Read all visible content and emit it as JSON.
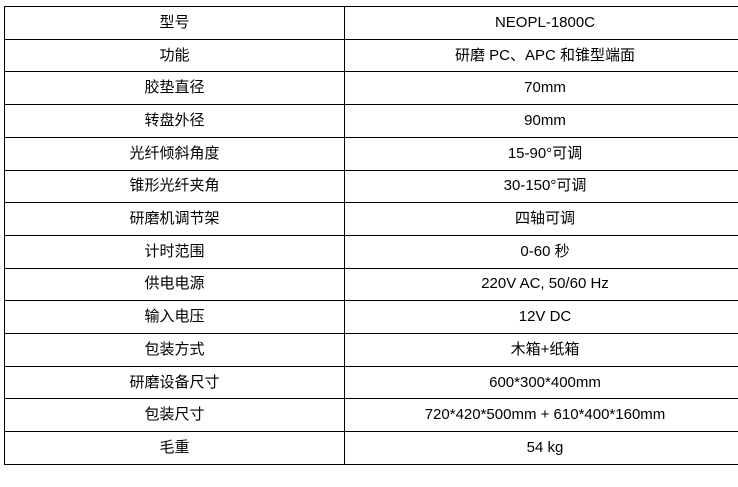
{
  "colors": {
    "border": "#000000",
    "text": "#000000",
    "background": "#ffffff"
  },
  "table": {
    "rows": [
      {
        "label": "型号",
        "value": "NEOPL-1800C"
      },
      {
        "label": "功能",
        "value": "研磨 PC、APC 和锥型端面"
      },
      {
        "label": "胶垫直径",
        "value": "70mm"
      },
      {
        "label": "转盘外径",
        "value": "90mm"
      },
      {
        "label": "光纤倾斜角度",
        "value": "15-90°可调"
      },
      {
        "label": "锥形光纤夹角",
        "value": "30-150°可调"
      },
      {
        "label": "研磨机调节架",
        "value": "四轴可调"
      },
      {
        "label": "计时范围",
        "value": "0-60 秒"
      },
      {
        "label": "供电电源",
        "value": "220V AC, 50/60 Hz"
      },
      {
        "label": "输入电压",
        "value": "12V DC"
      },
      {
        "label": "包装方式",
        "value": "木箱+纸箱"
      },
      {
        "label": "研磨设备尺寸",
        "value": "600*300*400mm"
      },
      {
        "label": "包装尺寸",
        "value": "720*420*500mm + 610*400*160mm"
      },
      {
        "label": "毛重",
        "value": "54 kg"
      }
    ]
  }
}
